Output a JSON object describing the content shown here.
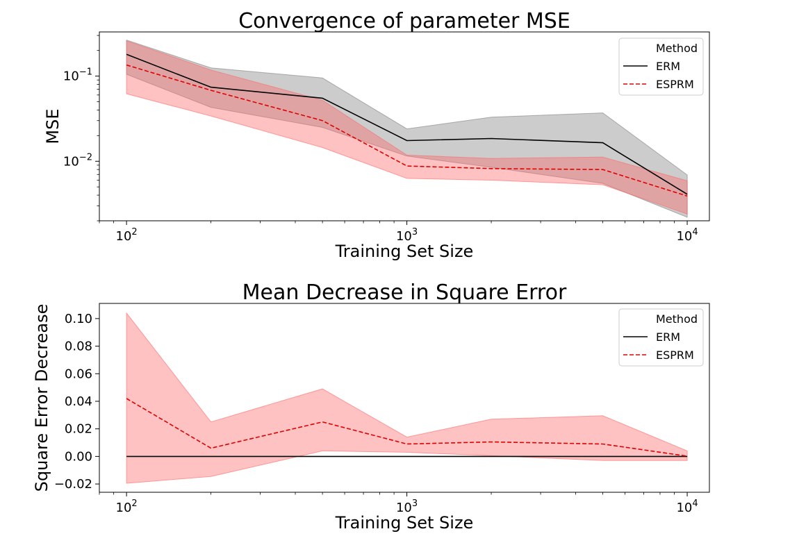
{
  "chart_data": [
    {
      "type": "line",
      "title": "Convergence of parameter MSE",
      "xlabel": "Training Set Size",
      "ylabel": "MSE",
      "xscale": "log",
      "yscale": "log",
      "xlim": [
        80,
        12000
      ],
      "ylim": [
        0.002,
        0.33
      ],
      "x": [
        100,
        200,
        500,
        1000,
        2000,
        5000,
        10000
      ],
      "xticks": [
        {
          "value": 100,
          "base": "10",
          "exp": "2"
        },
        {
          "value": 1000,
          "base": "10",
          "exp": "3"
        },
        {
          "value": 10000,
          "base": "10",
          "exp": "4"
        }
      ],
      "yticks": [
        {
          "value": 0.1,
          "base": "10",
          "exp": "−1"
        },
        {
          "value": 0.01,
          "base": "10",
          "exp": "−2"
        }
      ],
      "legend": {
        "title": "Method",
        "position": "top-right"
      },
      "series": [
        {
          "name": "ERM",
          "color": "#000000",
          "style": "solid",
          "band_color": "#808080",
          "values": [
            0.18,
            0.074,
            0.055,
            0.0175,
            0.0185,
            0.0165,
            0.0041
          ],
          "lower": [
            0.105,
            0.043,
            0.025,
            0.0115,
            0.0085,
            0.0055,
            0.0022
          ],
          "upper": [
            0.265,
            0.125,
            0.095,
            0.024,
            0.033,
            0.037,
            0.0069
          ]
        },
        {
          "name": "ESPRM",
          "color": "#e00000",
          "style": "dashed",
          "band_color": "#ff6666",
          "values": [
            0.135,
            0.068,
            0.03,
            0.0088,
            0.0082,
            0.008,
            0.0039
          ],
          "lower": [
            0.062,
            0.034,
            0.0145,
            0.0063,
            0.006,
            0.0053,
            0.0024
          ],
          "upper": [
            0.26,
            0.118,
            0.052,
            0.0118,
            0.0108,
            0.0112,
            0.0059
          ]
        }
      ]
    },
    {
      "type": "line",
      "title": "Mean Decrease in Square Error",
      "xlabel": "Training Set Size",
      "ylabel": "Square Error Decrease",
      "xscale": "log",
      "yscale": "linear",
      "xlim": [
        80,
        12000
      ],
      "ylim": [
        -0.026,
        0.111
      ],
      "x": [
        100,
        200,
        500,
        1000,
        2000,
        5000,
        10000
      ],
      "xticks": [
        {
          "value": 100,
          "base": "10",
          "exp": "2"
        },
        {
          "value": 1000,
          "base": "10",
          "exp": "3"
        },
        {
          "value": 10000,
          "base": "10",
          "exp": "4"
        }
      ],
      "yticks": [
        {
          "value": 0.1,
          "label": "0.10"
        },
        {
          "value": 0.08,
          "label": "0.08"
        },
        {
          "value": 0.06,
          "label": "0.06"
        },
        {
          "value": 0.04,
          "label": "0.04"
        },
        {
          "value": 0.02,
          "label": "0.02"
        },
        {
          "value": 0.0,
          "label": "0.00"
        },
        {
          "value": -0.02,
          "label": "−0.02"
        }
      ],
      "legend": {
        "title": "Method",
        "position": "top-right"
      },
      "series": [
        {
          "name": "ERM",
          "color": "#000000",
          "style": "solid",
          "band_color": "#808080",
          "values": [
            0,
            0,
            0,
            0,
            0,
            0,
            0
          ],
          "lower": null,
          "upper": null
        },
        {
          "name": "ESPRM",
          "color": "#e00000",
          "style": "dashed",
          "band_color": "#ff6666",
          "values": [
            0.042,
            0.006,
            0.025,
            0.009,
            0.0105,
            0.009,
            0.0002
          ],
          "lower": [
            -0.0195,
            -0.0145,
            0.004,
            0.003,
            0.0005,
            -0.003,
            -0.003
          ],
          "upper": [
            0.104,
            0.025,
            0.049,
            0.014,
            0.027,
            0.0295,
            0.004
          ]
        }
      ]
    }
  ]
}
